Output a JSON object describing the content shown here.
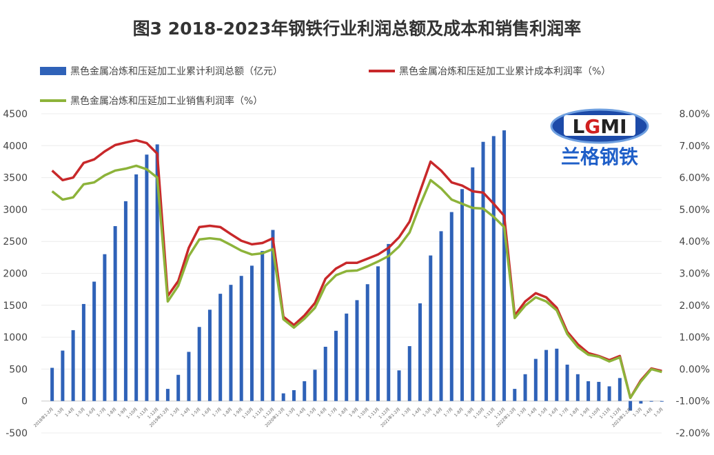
{
  "title": "图3 2018-2023年钢铁行业利润总额及成本和销售利润率",
  "logo": {
    "text": "LGMI",
    "subtitle": "兰格钢铁"
  },
  "chart_data": {
    "type": "bar+line",
    "title": "图3 2018-2023年钢铁行业利润总额及成本和销售利润率",
    "legend_placement": "top",
    "grid": true,
    "categories": [
      "2018年1-2月",
      "1-3月",
      "1-4月",
      "1-5月",
      "1-6月",
      "1-7月",
      "1-8月",
      "1-9月",
      "1-10月",
      "1-11月",
      "1-12月",
      "2019年1-2月",
      "1-3月",
      "1-4月",
      "1-5月",
      "1-6月",
      "1-7月",
      "1-8月",
      "1-9月",
      "1-10月",
      "1-11月",
      "1-12月",
      "2020年1-2月",
      "1-3月",
      "1-4月",
      "1-5月",
      "1-6月",
      "1-7月",
      "1-8月",
      "1-9月",
      "1-10月",
      "1-11月",
      "1-12月",
      "2021年1-2月",
      "1-3月",
      "1-4月",
      "1-5月",
      "1-6月",
      "1-7月",
      "1-8月",
      "1-9月",
      "1-10月",
      "1-11月",
      "1-12月",
      "2022年1-2月",
      "1-3月",
      "1-4月",
      "1-5月",
      "1-6月",
      "1-7月",
      "1-8月",
      "1-9月",
      "1-10月",
      "1-11月",
      "1-12月",
      "2023年1-2月",
      "1-3月",
      "1-4月",
      "1-5月"
    ],
    "left_axis": {
      "ylim": [
        -500,
        4500
      ],
      "ticks": [
        "-500",
        "0",
        "500",
        "1000",
        "1500",
        "2000",
        "2500",
        "3000",
        "3500",
        "4000",
        "4500"
      ]
    },
    "right_axis": {
      "ylim": [
        -2,
        8
      ],
      "ticks": [
        "-2.00%",
        "-1.00%",
        "0.00%",
        "1.00%",
        "2.00%",
        "3.00%",
        "4.00%",
        "5.00%",
        "6.00%",
        "7.00%",
        "8.00%"
      ]
    },
    "series": [
      {
        "name": "黑色金属冶炼和压延加工业累计利润总额（亿元）",
        "type": "bar",
        "axis": "left",
        "color": "#2f62b8",
        "values": [
          520,
          790,
          1110,
          1520,
          1870,
          2300,
          2740,
          3130,
          3550,
          3860,
          4020,
          190,
          410,
          770,
          1160,
          1430,
          1680,
          1820,
          1960,
          2120,
          2350,
          2680,
          120,
          170,
          310,
          490,
          850,
          1100,
          1370,
          1580,
          1830,
          2110,
          2460,
          480,
          860,
          1530,
          2280,
          2660,
          2960,
          3320,
          3660,
          4060,
          4150,
          4240,
          190,
          420,
          660,
          800,
          820,
          570,
          420,
          310,
          300,
          230,
          360,
          -150,
          -40,
          -5,
          -10
        ]
      },
      {
        "name": "黑色金属冶炼和压延加工业累计成本利润率（%）",
        "type": "line",
        "axis": "right",
        "color": "#c8282a",
        "values": [
          6.22,
          5.92,
          6.0,
          6.46,
          6.57,
          6.82,
          7.02,
          7.1,
          7.17,
          7.08,
          6.75,
          2.29,
          2.76,
          3.8,
          4.45,
          4.49,
          4.45,
          4.23,
          4.02,
          3.91,
          3.95,
          4.1,
          1.64,
          1.38,
          1.68,
          2.07,
          2.83,
          3.15,
          3.33,
          3.33,
          3.46,
          3.59,
          3.8,
          4.13,
          4.62,
          5.57,
          6.5,
          6.22,
          5.85,
          5.75,
          5.57,
          5.53,
          5.18,
          4.8,
          1.68,
          2.12,
          2.38,
          2.25,
          1.92,
          1.17,
          0.78,
          0.5,
          0.41,
          0.28,
          0.41,
          -0.9,
          -0.35,
          0.02,
          -0.06
        ]
      },
      {
        "name": "黑色金属冶炼和压延加工业销售利润率（%）",
        "type": "line",
        "axis": "right",
        "color": "#8db33a",
        "values": [
          5.57,
          5.31,
          5.38,
          5.79,
          5.85,
          6.07,
          6.22,
          6.28,
          6.37,
          6.26,
          6.0,
          2.12,
          2.61,
          3.54,
          4.06,
          4.1,
          4.06,
          3.89,
          3.71,
          3.59,
          3.63,
          3.76,
          1.56,
          1.3,
          1.58,
          1.92,
          2.61,
          2.94,
          3.07,
          3.09,
          3.22,
          3.37,
          3.54,
          3.84,
          4.28,
          5.14,
          5.92,
          5.66,
          5.31,
          5.18,
          5.05,
          5.03,
          4.77,
          4.45,
          1.6,
          1.99,
          2.25,
          2.12,
          1.84,
          1.1,
          0.69,
          0.45,
          0.39,
          0.24,
          0.37,
          -0.9,
          -0.39,
          0.0,
          -0.09
        ]
      }
    ]
  }
}
